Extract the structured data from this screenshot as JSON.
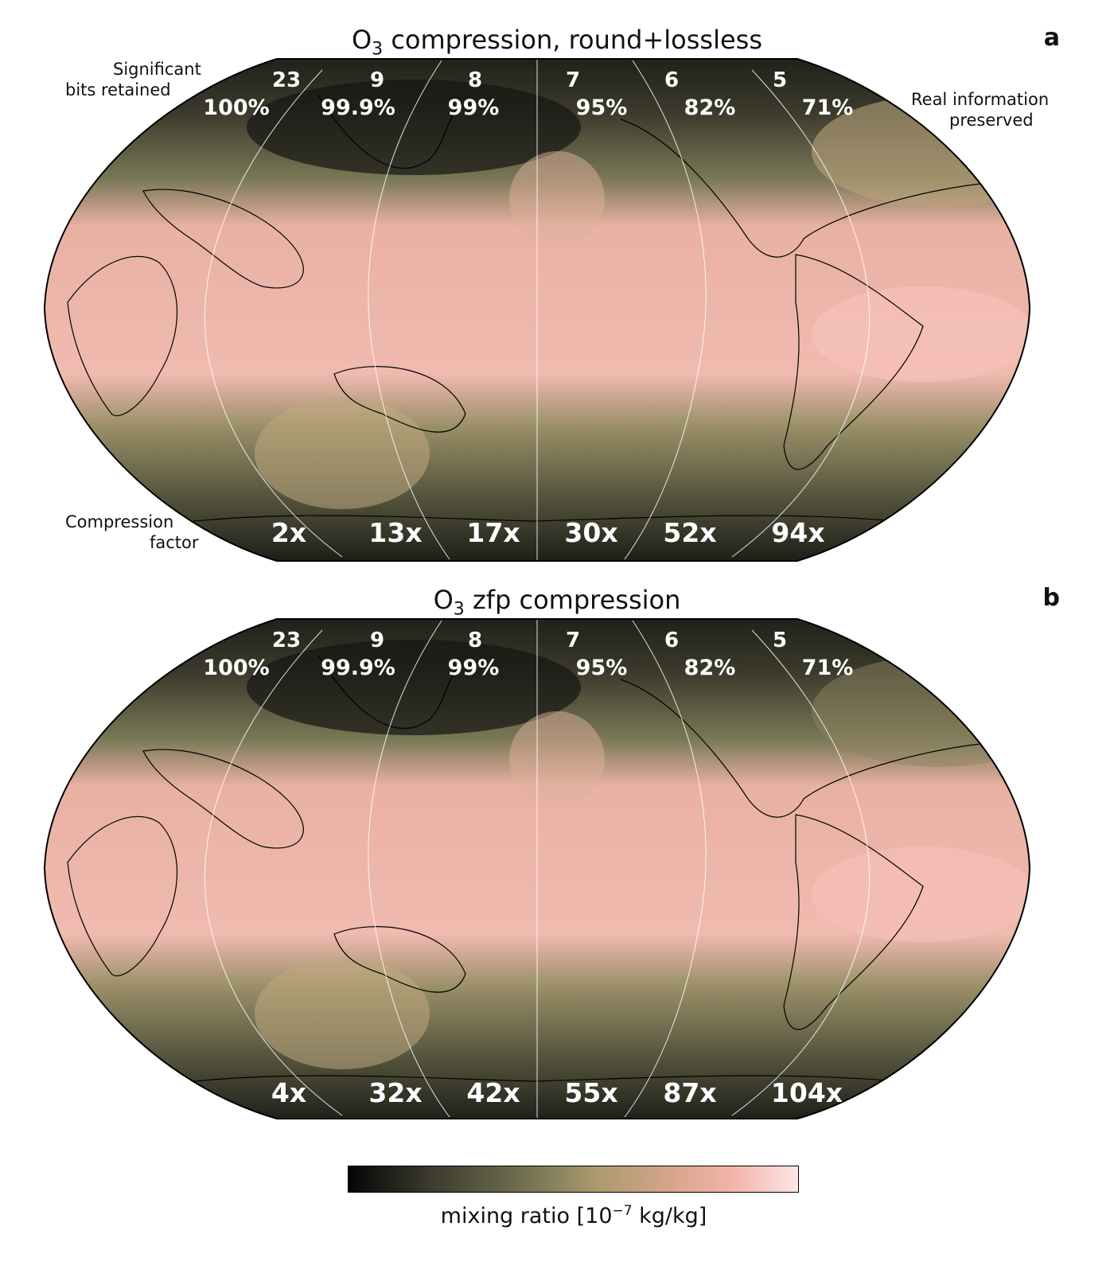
{
  "panels": [
    {
      "letter": "a",
      "title": "compression, round+lossless",
      "species": "O",
      "species_sub": "3",
      "bits": [
        "23",
        "9",
        "8",
        "7",
        "6",
        "5"
      ],
      "real_info": [
        "100%",
        "99.9%",
        "99%",
        "95%",
        "82%",
        "71%"
      ],
      "compression_factors": [
        "2x",
        "13x",
        "17x",
        "30x",
        "52x",
        "94x"
      ]
    },
    {
      "letter": "b",
      "title": "zfp compression",
      "species": "O",
      "species_sub": "3",
      "bits": [
        "23",
        "9",
        "8",
        "7",
        "6",
        "5"
      ],
      "real_info": [
        "100%",
        "99.9%",
        "99%",
        "95%",
        "82%",
        "71%"
      ],
      "compression_factors": [
        "4x",
        "32x",
        "42x",
        "55x",
        "87x",
        "104x"
      ]
    }
  ],
  "annotations": {
    "bits_line1": "Significant",
    "bits_line2": "bits retained",
    "info_line1": "Real information",
    "info_line2": "preserved",
    "cf_line1": "Compression",
    "cf_line2": "factor"
  },
  "colorbar": {
    "label_prefix": "mixing ratio [10",
    "label_exp": "−7",
    "label_suffix": " kg/kg]",
    "colors": [
      "#050505",
      "#6e6d4f",
      "#a99a6e",
      "#f2b6ab",
      "#fde6e6"
    ]
  },
  "map": {
    "projection": "Robinson",
    "central_longitude": "180",
    "coastlines": true,
    "colormap": "pink"
  }
}
